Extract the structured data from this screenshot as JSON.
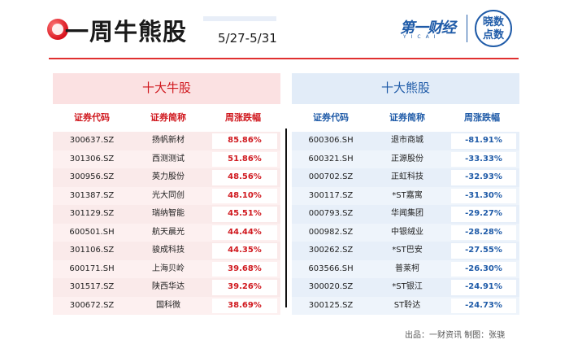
{
  "header": {
    "title": "一周牛熊股",
    "date_range": "5/27-5/31",
    "brand": "第一财经",
    "brand_sub": "YICAI",
    "badge_line1": "晓数",
    "badge_line2": "点数"
  },
  "bull": {
    "title": "十大牛股",
    "col_code": "证券代码",
    "col_name": "证券简称",
    "col_change": "周涨跌幅",
    "rows": [
      {
        "code": "300637.SZ",
        "name": "扬帆新材",
        "change": "85.86%"
      },
      {
        "code": "301306.SZ",
        "name": "西测测试",
        "change": "51.86%"
      },
      {
        "code": "300956.SZ",
        "name": "英力股份",
        "change": "48.56%"
      },
      {
        "code": "301387.SZ",
        "name": "光大同创",
        "change": "48.10%"
      },
      {
        "code": "301129.SZ",
        "name": "瑞纳智能",
        "change": "45.51%"
      },
      {
        "code": "600501.SH",
        "name": "航天晨光",
        "change": "44.44%"
      },
      {
        "code": "301106.SZ",
        "name": "骏成科技",
        "change": "44.35%"
      },
      {
        "code": "600171.SH",
        "name": "上海贝岭",
        "change": "39.68%"
      },
      {
        "code": "301517.SZ",
        "name": "陕西华达",
        "change": "39.26%"
      },
      {
        "code": "300672.SZ",
        "name": "国科微",
        "change": "38.69%"
      }
    ]
  },
  "bear": {
    "title": "十大熊股",
    "col_code": "证券代码",
    "col_name": "证券简称",
    "col_change": "周涨跌幅",
    "rows": [
      {
        "code": "600306.SH",
        "name": "退市商城",
        "change": "-81.91%"
      },
      {
        "code": "600321.SH",
        "name": "正源股份",
        "change": "-33.33%"
      },
      {
        "code": "000702.SZ",
        "name": "正虹科技",
        "change": "-32.93%"
      },
      {
        "code": "300117.SZ",
        "name": "*ST嘉寓",
        "change": "-31.30%"
      },
      {
        "code": "000793.SZ",
        "name": "华闻集团",
        "change": "-29.27%"
      },
      {
        "code": "000982.SZ",
        "name": "中银绒业",
        "change": "-28.28%"
      },
      {
        "code": "300262.SZ",
        "name": "*ST巴安",
        "change": "-27.55%"
      },
      {
        "code": "603566.SH",
        "name": "普莱柯",
        "change": "-26.30%"
      },
      {
        "code": "300020.SZ",
        "name": "*ST银江",
        "change": "-24.91%"
      },
      {
        "code": "300125.SZ",
        "name": "ST聆达",
        "change": "-24.73%"
      }
    ]
  },
  "footer": {
    "source": "出品：一财资讯  制图：张骁"
  }
}
